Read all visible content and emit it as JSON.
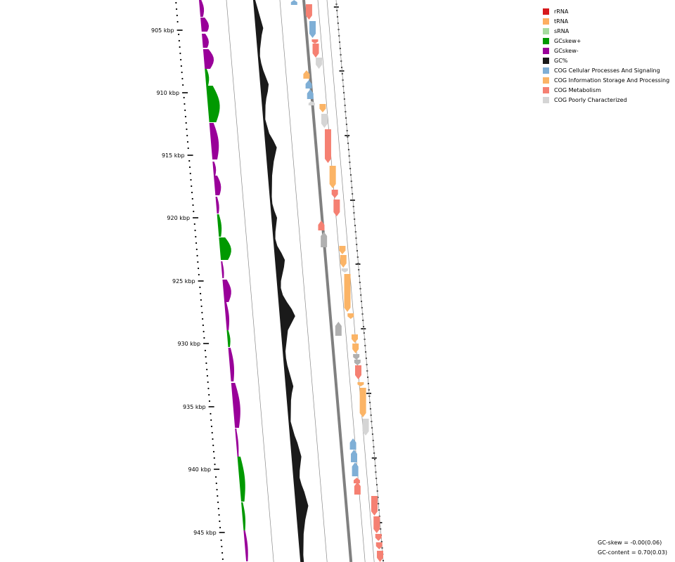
{
  "legend": [
    {
      "label": "rRNA",
      "color": "#d7191c"
    },
    {
      "label": "tRNA",
      "color": "#fdae61"
    },
    {
      "label": "sRNA",
      "color": "#a6dba0"
    },
    {
      "label": "GCskew+",
      "color": "#009900"
    },
    {
      "label": "GCskew-",
      "color": "#990099"
    },
    {
      "label": "GC%",
      "color": "#1a1a1a"
    },
    {
      "label": "COG Cellular Processes And Signaling",
      "color": "#7fafd6"
    },
    {
      "label": "COG Information Storage And Processing",
      "color": "#fbb466"
    },
    {
      "label": "COG Metabolism",
      "color": "#f58072"
    },
    {
      "label": "COG Poorly Characterized",
      "color": "#d5d5d5"
    }
  ],
  "stats": {
    "gc_skew": "GC-skew = -0.00(0.06)",
    "gc_content": "GC-content = 0.70(0.03)"
  },
  "ticks": [
    "905 kbp",
    "910 kbp",
    "915 kbp",
    "920 kbp",
    "925 kbp",
    "930 kbp",
    "935 kbp",
    "940 kbp",
    "945 kbp"
  ],
  "colors": {
    "skew_pos": "#009900",
    "skew_neg": "#990099",
    "gc": "#1a1a1a",
    "backbone": "#808080",
    "cog_cell": "#7fafd6",
    "cog_info": "#fbb466",
    "cog_meta": "#f58072",
    "cog_poor": "#d5d5d5",
    "cog_grey": "#b0b0b0"
  }
}
